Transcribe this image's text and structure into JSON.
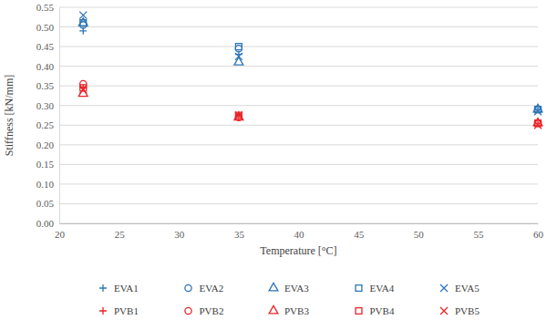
{
  "chart_data": {
    "type": "scatter",
    "x_label": "Temperature [°C]",
    "y_label": "Stiffness [kN/mm]",
    "x": [
      22,
      35,
      60
    ],
    "series": [
      {
        "name": "EVA1",
        "color": "#2e75b6",
        "marker": "plus",
        "values": [
          0.49,
          0.43,
          0.29
        ]
      },
      {
        "name": "EVA2",
        "color": "#2e75b6",
        "marker": "circle",
        "values": [
          0.505,
          0.445,
          0.29
        ]
      },
      {
        "name": "EVA3",
        "color": "#2e75b6",
        "marker": "triangle",
        "values": [
          0.51,
          0.41,
          0.29
        ]
      },
      {
        "name": "EVA4",
        "color": "#2e75b6",
        "marker": "square",
        "values": [
          0.51,
          0.45,
          0.29
        ]
      },
      {
        "name": "EVA5",
        "color": "#2e75b6",
        "marker": "x",
        "values": [
          0.53,
          0.425,
          0.285
        ]
      },
      {
        "name": "PVB1",
        "color": "#e8262a",
        "marker": "plus",
        "values": [
          0.345,
          0.275,
          0.255
        ]
      },
      {
        "name": "PVB2",
        "color": "#e8262a",
        "marker": "circle",
        "values": [
          0.355,
          0.27,
          0.255
        ]
      },
      {
        "name": "PVB3",
        "color": "#e8262a",
        "marker": "triangle",
        "values": [
          0.33,
          0.27,
          0.255
        ]
      },
      {
        "name": "PVB4",
        "color": "#e8262a",
        "marker": "square",
        "values": [
          0.345,
          0.275,
          0.255
        ]
      },
      {
        "name": "PVB5",
        "color": "#e8262a",
        "marker": "x",
        "values": [
          0.34,
          0.275,
          0.25
        ]
      }
    ],
    "xlim": [
      20,
      60
    ],
    "xticks": [
      20,
      25,
      30,
      35,
      40,
      45,
      50,
      55,
      60
    ],
    "ylim": [
      0,
      0.55
    ],
    "yticks": [
      {
        "value": 0,
        "label": "0.00"
      },
      {
        "value": 0.05,
        "label": "0.05"
      },
      {
        "value": 0.1,
        "label": "0.10"
      },
      {
        "value": 0.15,
        "label": "0.15"
      },
      {
        "value": 0.2,
        "label": "0.20"
      },
      {
        "value": 0.25,
        "label": "0.25"
      },
      {
        "value": 0.3,
        "label": "0.30"
      },
      {
        "value": 0.35,
        "label": "0.35"
      },
      {
        "value": 0.4,
        "label": "0.40"
      },
      {
        "value": 0.45,
        "label": "0.45"
      },
      {
        "value": 0.5,
        "label": "0.50"
      },
      {
        "value": 0.55,
        "label": "0.55"
      }
    ],
    "grid": true,
    "legend": "bottom"
  }
}
